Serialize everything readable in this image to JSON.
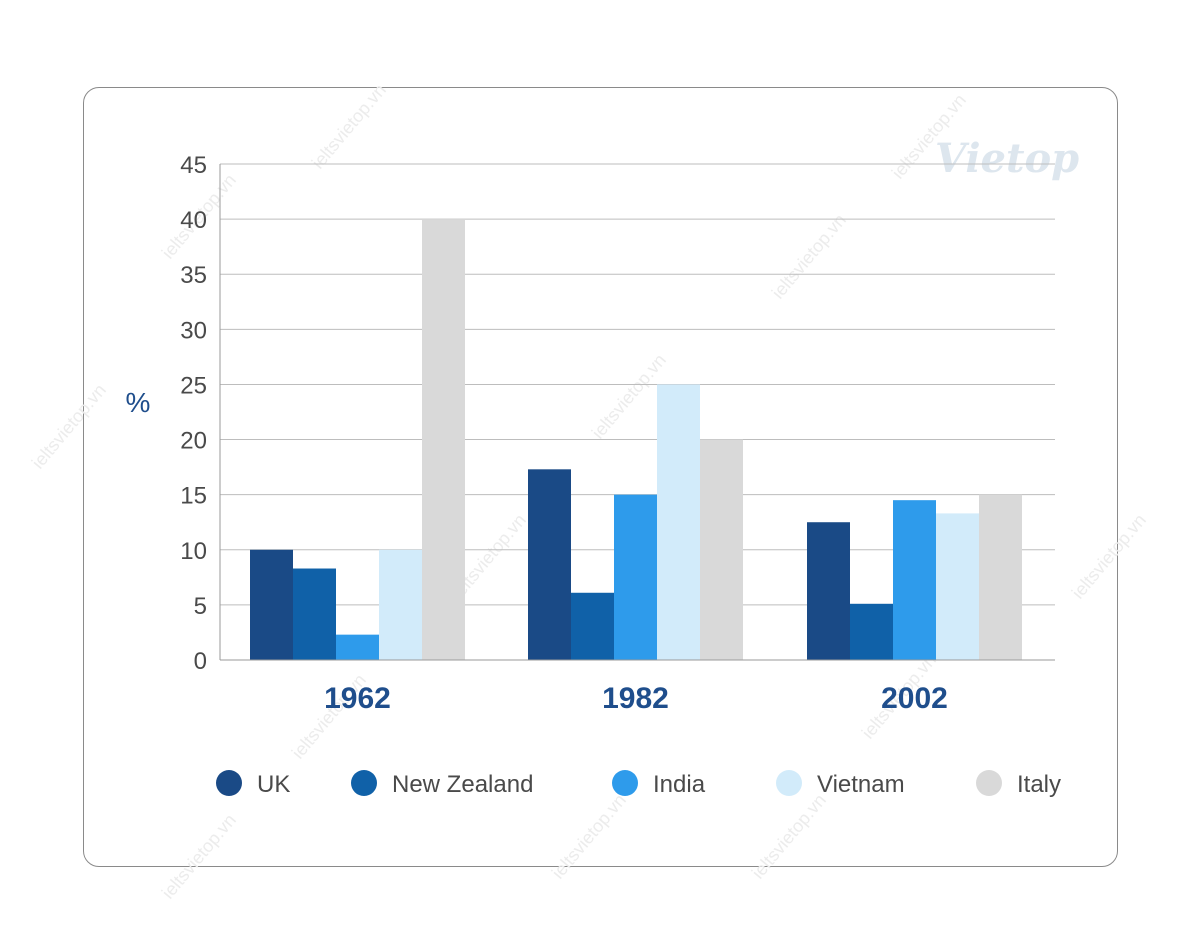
{
  "brand": {
    "logo_text": "Vietop",
    "watermark_text": "ieltsvietop.vn"
  },
  "chart_data": {
    "type": "bar",
    "categories": [
      "1962",
      "1982",
      "2002"
    ],
    "ylabel": "%",
    "ylim": [
      0,
      45
    ],
    "yticks": [
      0,
      5,
      10,
      15,
      20,
      25,
      30,
      35,
      40,
      45
    ],
    "grid": true,
    "legend_position": "bottom",
    "series": [
      {
        "name": "UK",
        "color": "#1a4a86",
        "values": [
          10,
          17.3,
          12.5
        ]
      },
      {
        "name": "New Zealand",
        "color": "#1061a8",
        "values": [
          8.3,
          6.1,
          5.1
        ]
      },
      {
        "name": "India",
        "color": "#2e9beb",
        "values": [
          2.3,
          15,
          14.5
        ]
      },
      {
        "name": "Vietnam",
        "color": "#d2ebfa",
        "values": [
          10,
          25,
          13.3
        ]
      },
      {
        "name": "Italy",
        "color": "#d9d9d9",
        "values": [
          40,
          20,
          15
        ]
      }
    ]
  }
}
